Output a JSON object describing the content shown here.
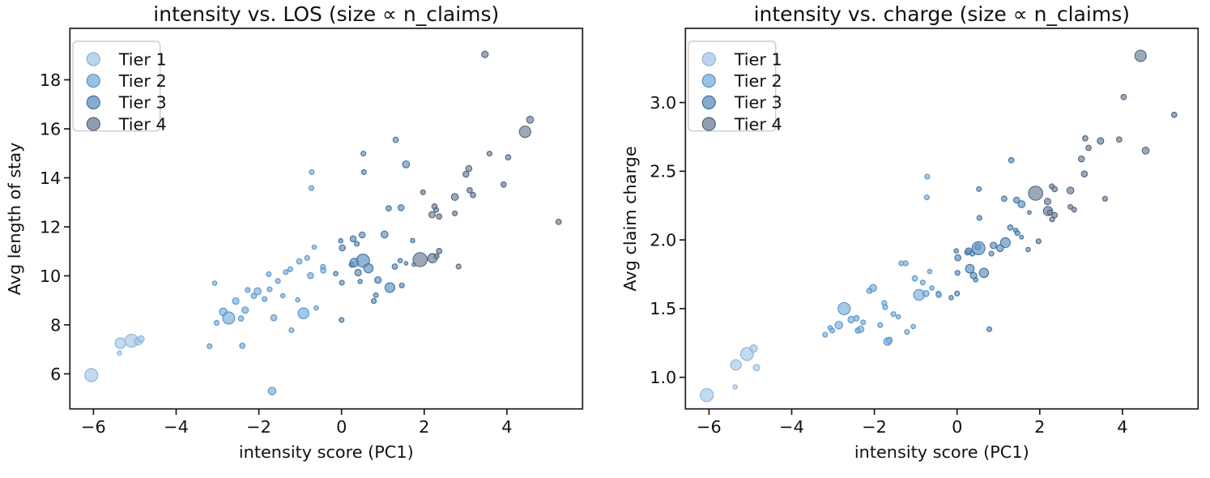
{
  "figure": {
    "background": "#ffffff",
    "description": "Two-panel matplotlib scatter figure of facility claim intensity"
  },
  "chart_data": {
    "type": "scatter",
    "xlabel": "intensity score (PC1)",
    "xlim": [
      -6.57,
      5.83
    ],
    "xticks": [
      -6,
      -4,
      -2,
      0,
      2,
      4
    ],
    "xtick_labels": [
      "−6",
      "−4",
      "−2",
      "0",
      "2",
      "4"
    ],
    "grid": false,
    "size_note": "size ∝ n_claims",
    "legend": {
      "position": "upper left",
      "entries": [
        {
          "tier": "1",
          "label": "Tier 1"
        },
        {
          "tier": "2",
          "label": "Tier 2"
        },
        {
          "tier": "3",
          "label": "Tier 3"
        },
        {
          "tier": "4",
          "label": "Tier 4"
        }
      ]
    },
    "tiers": {
      "1": {
        "label": "Tier 1",
        "fill": "#abcbe8",
        "edge": "#86b2d7"
      },
      "2": {
        "label": "Tier 2",
        "fill": "#7fb2db",
        "edge": "#5794c7"
      },
      "3": {
        "label": "Tier 3",
        "fill": "#6697c3",
        "edge": "#3f6f9c"
      },
      "4": {
        "label": "Tier 4",
        "fill": "#73849a",
        "edge": "#4f647c"
      }
    },
    "charts": [
      {
        "title": "intensity vs. LOS (size ∝ n_claims)",
        "ylabel": "Avg length of stay",
        "ykey": "los",
        "ylim": [
          4.57,
          20.1
        ],
        "yticks": [
          6,
          8,
          10,
          12,
          14,
          16,
          18
        ],
        "ytick_labels": [
          "6",
          "8",
          "10",
          "12",
          "14",
          "16",
          "18"
        ]
      },
      {
        "title": "intensity vs. charge (size ∝ n_claims)",
        "ylabel": "Avg claim charge",
        "ykey": "charge",
        "ylim": [
          0.77,
          3.54
        ],
        "yticks": [
          1.0,
          1.5,
          2.0,
          2.5,
          3.0
        ],
        "ytick_labels": [
          "1.0",
          "1.5",
          "2.0",
          "2.5",
          "3.0"
        ]
      }
    ],
    "points": [
      {
        "x": -6.05,
        "los": 5.95,
        "charge": 0.87,
        "tier": "1",
        "r": 8.0
      },
      {
        "x": -5.37,
        "los": 6.85,
        "charge": 0.93,
        "tier": "1",
        "r": 2.7
      },
      {
        "x": -5.35,
        "los": 7.25,
        "charge": 1.09,
        "tier": "1",
        "r": 6.5
      },
      {
        "x": -5.08,
        "los": 7.35,
        "charge": 1.17,
        "tier": "1",
        "r": 8.0
      },
      {
        "x": -4.92,
        "los": 7.32,
        "charge": 1.21,
        "tier": "1",
        "r": 4.5
      },
      {
        "x": -4.85,
        "los": 7.42,
        "charge": 1.07,
        "tier": "1",
        "r": 4.0
      },
      {
        "x": -3.19,
        "los": 7.13,
        "charge": 1.31,
        "tier": "2",
        "r": 3.0
      },
      {
        "x": -3.07,
        "los": 9.7,
        "charge": 1.36,
        "tier": "2",
        "r": 2.7
      },
      {
        "x": -3.02,
        "los": 8.08,
        "charge": 1.34,
        "tier": "2",
        "r": 3.0
      },
      {
        "x": -2.86,
        "los": 8.53,
        "charge": 1.38,
        "tier": "2",
        "r": 4.7
      },
      {
        "x": -2.73,
        "los": 8.28,
        "charge": 1.5,
        "tier": "2",
        "r": 7.5
      },
      {
        "x": -2.56,
        "los": 8.97,
        "charge": 1.42,
        "tier": "2",
        "r": 4.0
      },
      {
        "x": -2.43,
        "los": 8.26,
        "charge": 1.43,
        "tier": "2",
        "r": 3.3
      },
      {
        "x": -2.4,
        "los": 7.15,
        "charge": 1.34,
        "tier": "2",
        "r": 3.3
      },
      {
        "x": -2.33,
        "los": 8.6,
        "charge": 1.35,
        "tier": "2",
        "r": 4.0
      },
      {
        "x": -2.27,
        "los": 9.42,
        "charge": 1.4,
        "tier": "2",
        "r": 3.0
      },
      {
        "x": -2.12,
        "los": 9.18,
        "charge": 1.63,
        "tier": "2",
        "r": 3.3
      },
      {
        "x": -2.03,
        "los": 9.37,
        "charge": 1.65,
        "tier": "2",
        "r": 4.3
      },
      {
        "x": -1.86,
        "los": 9.05,
        "charge": 1.38,
        "tier": "2",
        "r": 3.0
      },
      {
        "x": -1.76,
        "los": 10.07,
        "charge": 1.54,
        "tier": "2",
        "r": 3.0
      },
      {
        "x": -1.74,
        "los": 9.45,
        "charge": 1.51,
        "tier": "2",
        "r": 3.0
      },
      {
        "x": -1.68,
        "los": 5.3,
        "charge": 1.26,
        "tier": "2",
        "r": 4.7
      },
      {
        "x": -1.64,
        "los": 8.29,
        "charge": 1.27,
        "tier": "2",
        "r": 3.7
      },
      {
        "x": -1.54,
        "los": 9.79,
        "charge": 1.46,
        "tier": "2",
        "r": 3.0
      },
      {
        "x": -1.42,
        "los": 9.19,
        "charge": 1.44,
        "tier": "2",
        "r": 2.7
      },
      {
        "x": -1.35,
        "los": 10.15,
        "charge": 1.83,
        "tier": "2",
        "r": 3.0
      },
      {
        "x": -1.24,
        "los": 10.27,
        "charge": 1.83,
        "tier": "2",
        "r": 3.0
      },
      {
        "x": -1.21,
        "los": 7.78,
        "charge": 1.33,
        "tier": "2",
        "r": 3.0
      },
      {
        "x": -1.06,
        "los": 9.02,
        "charge": 1.37,
        "tier": "2",
        "r": 2.7
      },
      {
        "x": -1.02,
        "los": 10.59,
        "charge": 1.72,
        "tier": "2",
        "r": 3.3
      },
      {
        "x": -0.92,
        "los": 8.47,
        "charge": 1.6,
        "tier": "2",
        "r": 6.7
      },
      {
        "x": -0.83,
        "los": 10.73,
        "charge": 1.69,
        "tier": "2",
        "r": 3.0
      },
      {
        "x": -0.75,
        "los": 10.01,
        "charge": 1.61,
        "tier": "2",
        "r": 3.7
      },
      {
        "x": -0.73,
        "los": 13.58,
        "charge": 2.31,
        "tier": "2",
        "r": 3.0
      },
      {
        "x": -0.72,
        "los": 14.23,
        "charge": 2.46,
        "tier": "2",
        "r": 3.0
      },
      {
        "x": -0.66,
        "los": 11.17,
        "charge": 1.77,
        "tier": "2",
        "r": 2.7
      },
      {
        "x": -0.61,
        "los": 8.69,
        "charge": 1.65,
        "tier": "2",
        "r": 2.7
      },
      {
        "x": -0.45,
        "los": 10.37,
        "charge": 1.61,
        "tier": "2",
        "r": 3.0
      },
      {
        "x": -0.44,
        "los": 10.22,
        "charge": 1.6,
        "tier": "2",
        "r": 3.3
      },
      {
        "x": -0.14,
        "los": 10.09,
        "charge": 1.58,
        "tier": "3",
        "r": 2.7
      },
      {
        "x": -0.02,
        "los": 11.43,
        "charge": 1.92,
        "tier": "3",
        "r": 2.7
      },
      {
        "x": 0.02,
        "los": 11.14,
        "charge": 1.87,
        "tier": "3",
        "r": 3.7
      },
      {
        "x": 0.01,
        "los": 9.72,
        "charge": 1.76,
        "tier": "3",
        "r": 3.0
      },
      {
        "x": 0.0,
        "los": 8.2,
        "charge": 1.61,
        "tier": "3",
        "r": 3.0
      },
      {
        "x": 0.25,
        "los": 10.46,
        "charge": 1.91,
        "tier": "3",
        "r": 3.3
      },
      {
        "x": 0.28,
        "los": 11.51,
        "charge": 1.92,
        "tier": "3",
        "r": 3.7
      },
      {
        "x": 0.31,
        "los": 10.54,
        "charge": 1.79,
        "tier": "3",
        "r": 5.3
      },
      {
        "x": 0.37,
        "los": 11.31,
        "charge": 1.9,
        "tier": "3",
        "r": 3.0
      },
      {
        "x": 0.4,
        "los": 10.13,
        "charge": 1.74,
        "tier": "3",
        "r": 4.0
      },
      {
        "x": 0.45,
        "los": 9.77,
        "charge": 1.71,
        "tier": "3",
        "r": 2.7
      },
      {
        "x": 0.5,
        "los": 11.67,
        "charge": 1.95,
        "tier": "3",
        "r": 3.7
      },
      {
        "x": 0.52,
        "los": 10.62,
        "charge": 1.94,
        "tier": "3",
        "r": 8.0
      },
      {
        "x": 0.53,
        "los": 14.99,
        "charge": 2.37,
        "tier": "3",
        "r": 3.0
      },
      {
        "x": 0.54,
        "los": 14.23,
        "charge": 2.16,
        "tier": "3",
        "r": 3.0
      },
      {
        "x": 0.65,
        "los": 10.31,
        "charge": 1.76,
        "tier": "3",
        "r": 5.7
      },
      {
        "x": 0.78,
        "los": 8.97,
        "charge": 1.35,
        "tier": "3",
        "r": 3.0
      },
      {
        "x": 0.83,
        "los": 9.21,
        "charge": 1.9,
        "tier": "3",
        "r": 3.0
      },
      {
        "x": 0.88,
        "los": 9.83,
        "charge": 1.96,
        "tier": "3",
        "r": 4.0
      },
      {
        "x": 1.04,
        "los": 11.69,
        "charge": 1.94,
        "tier": "3",
        "r": 4.3
      },
      {
        "x": 1.14,
        "los": 12.75,
        "charge": 2.3,
        "tier": "3",
        "r": 3.3
      },
      {
        "x": 1.17,
        "los": 9.52,
        "charge": 1.98,
        "tier": "3",
        "r": 6.0
      },
      {
        "x": 1.29,
        "los": 10.38,
        "charge": 2.09,
        "tier": "3",
        "r": 3.3
      },
      {
        "x": 1.31,
        "los": 15.55,
        "charge": 2.58,
        "tier": "3",
        "r": 3.3
      },
      {
        "x": 1.42,
        "los": 10.62,
        "charge": 2.07,
        "tier": "3",
        "r": 2.7
      },
      {
        "x": 1.44,
        "los": 12.78,
        "charge": 2.29,
        "tier": "3",
        "r": 3.7
      },
      {
        "x": 1.46,
        "los": 9.61,
        "charge": 2.05,
        "tier": "3",
        "r": 3.0
      },
      {
        "x": 1.56,
        "los": 10.51,
        "charge": 2.02,
        "tier": "3",
        "r": 2.3
      },
      {
        "x": 1.56,
        "los": 14.55,
        "charge": 2.26,
        "tier": "3",
        "r": 4.3
      },
      {
        "x": 1.72,
        "los": 11.44,
        "charge": 1.93,
        "tier": "3",
        "r": 2.7
      },
      {
        "x": 1.75,
        "los": 10.46,
        "charge": 2.2,
        "tier": "3",
        "r": 2.3
      },
      {
        "x": 1.9,
        "los": 10.66,
        "charge": 2.34,
        "tier": "4",
        "r": 8.7
      },
      {
        "x": 1.97,
        "los": 13.41,
        "charge": 1.99,
        "tier": "4",
        "r": 3.0
      },
      {
        "x": 2.2,
        "los": 10.72,
        "charge": 2.21,
        "tier": "4",
        "r": 5.7
      },
      {
        "x": 2.3,
        "los": 10.8,
        "charge": 2.15,
        "tier": "4",
        "r": 3.0
      },
      {
        "x": 2.36,
        "los": 11.01,
        "charge": 2.18,
        "tier": "4",
        "r": 3.3
      },
      {
        "x": 2.19,
        "los": 12.5,
        "charge": 2.28,
        "tier": "4",
        "r": 4.0
      },
      {
        "x": 2.25,
        "los": 12.83,
        "charge": 2.2,
        "tier": "4",
        "r": 3.3
      },
      {
        "x": 2.29,
        "los": 12.69,
        "charge": 2.39,
        "tier": "4",
        "r": 3.0
      },
      {
        "x": 2.36,
        "los": 12.42,
        "charge": 2.37,
        "tier": "4",
        "r": 3.3
      },
      {
        "x": 2.74,
        "los": 13.22,
        "charge": 2.36,
        "tier": "4",
        "r": 4.3
      },
      {
        "x": 2.74,
        "los": 12.55,
        "charge": 2.24,
        "tier": "4",
        "r": 3.0
      },
      {
        "x": 2.83,
        "los": 10.38,
        "charge": 2.22,
        "tier": "4",
        "r": 3.0
      },
      {
        "x": 3.01,
        "los": 14.15,
        "charge": 2.59,
        "tier": "4",
        "r": 3.7
      },
      {
        "x": 3.08,
        "los": 14.38,
        "charge": 2.48,
        "tier": "4",
        "r": 3.7
      },
      {
        "x": 3.1,
        "los": 13.49,
        "charge": 2.74,
        "tier": "4",
        "r": 3.3
      },
      {
        "x": 3.18,
        "los": 13.3,
        "charge": 2.67,
        "tier": "4",
        "r": 3.3
      },
      {
        "x": 3.47,
        "los": 19.04,
        "charge": 2.72,
        "tier": "4",
        "r": 4.0
      },
      {
        "x": 3.58,
        "los": 14.99,
        "charge": 2.3,
        "tier": "4",
        "r": 3.0
      },
      {
        "x": 3.92,
        "los": 13.73,
        "charge": 2.73,
        "tier": "4",
        "r": 3.3
      },
      {
        "x": 4.03,
        "los": 14.84,
        "charge": 3.04,
        "tier": "4",
        "r": 3.3
      },
      {
        "x": 4.44,
        "los": 15.88,
        "charge": 3.34,
        "tier": "4",
        "r": 7.0
      },
      {
        "x": 4.56,
        "los": 16.37,
        "charge": 2.65,
        "tier": "4",
        "r": 4.3
      },
      {
        "x": 5.25,
        "los": 12.2,
        "charge": 2.91,
        "tier": "4",
        "r": 3.3
      }
    ]
  }
}
